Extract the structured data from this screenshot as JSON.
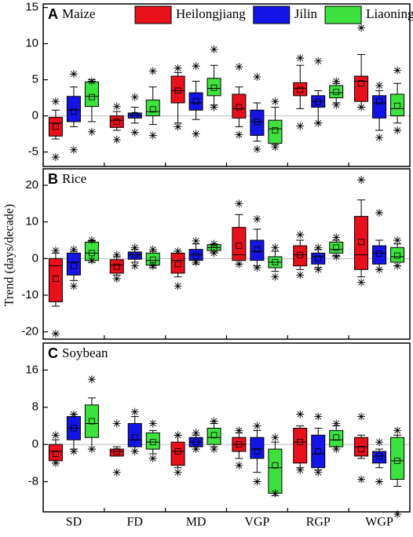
{
  "chart_data": [
    {
      "type": "box",
      "panel_label": "A",
      "title": "Maize",
      "ylim": [
        -7,
        15.5
      ],
      "yticks": [
        -5,
        0,
        5,
        10,
        15
      ],
      "series": [
        {
          "name": "Heilongjiang",
          "color": "#e8101a",
          "boxes": [
            {
              "whislo": -3.2,
              "q1": -2.8,
              "med": -1.0,
              "q3": -0.2,
              "whishi": 0.8,
              "mean": -1.5,
              "fliers": [
                -5.7,
                2.0
              ]
            },
            {
              "whislo": -2.0,
              "q1": -1.6,
              "med": -0.6,
              "q3": 0.0,
              "whishi": 0.6,
              "mean": -0.8,
              "fliers": [
                -3.3,
                1.3
              ]
            },
            {
              "whislo": -1.0,
              "q1": 1.8,
              "med": 3.5,
              "q3": 5.5,
              "whishi": 6.0,
              "mean": 3.5,
              "fliers": [
                -1.5,
                6.6
              ]
            },
            {
              "whislo": -1.5,
              "q1": -0.3,
              "med": 1.0,
              "q3": 3.0,
              "whishi": 4.0,
              "mean": 1.2,
              "fliers": [
                -2.6,
                6.8
              ]
            },
            {
              "whislo": 1.0,
              "q1": 2.8,
              "med": 3.8,
              "q3": 4.6,
              "whishi": 7.0,
              "mean": 3.6,
              "fliers": [
                -1.4,
                8.0
              ]
            },
            {
              "whislo": 1.2,
              "q1": 2.0,
              "med": 4.8,
              "q3": 5.5,
              "whishi": 8.5,
              "mean": 4.5,
              "fliers": [
                1.2,
                12.2
              ]
            }
          ]
        },
        {
          "name": "Jilin",
          "color": "#1414e6",
          "boxes": [
            {
              "whislo": -1.5,
              "q1": -0.8,
              "med": 0.8,
              "q3": 2.7,
              "whishi": 4.0,
              "mean": 0.6,
              "fliers": [
                -4.7,
                5.8
              ]
            },
            {
              "whislo": -1.0,
              "q1": -0.3,
              "med": 0.1,
              "q3": 0.4,
              "whishi": 1.2,
              "mean": 0.1,
              "fliers": [
                -2.3,
                2.6
              ]
            },
            {
              "whislo": -0.5,
              "q1": 0.8,
              "med": 1.8,
              "q3": 3.2,
              "whishi": 4.8,
              "mean": 2.0,
              "fliers": [
                -2.5,
                6.9
              ]
            },
            {
              "whislo": -3.5,
              "q1": -2.7,
              "med": -0.8,
              "q3": 0.8,
              "whishi": 1.8,
              "mean": -0.8,
              "fliers": [
                -4.6,
                5.4
              ]
            },
            {
              "whislo": -1.0,
              "q1": 1.2,
              "med": 2.0,
              "q3": 2.8,
              "whishi": 3.5,
              "mean": 1.9,
              "fliers": [
                -1.0,
                7.6
              ]
            },
            {
              "whislo": -2.0,
              "q1": -0.3,
              "med": 1.8,
              "q3": 2.8,
              "whishi": 3.5,
              "mean": 2.0,
              "fliers": [
                -3.0,
                4.2
              ]
            }
          ]
        },
        {
          "name": "Liaoning",
          "color": "#3ee23e",
          "boxes": [
            {
              "whislo": -0.8,
              "q1": 1.3,
              "med": 2.7,
              "q3": 4.7,
              "whishi": 5.0,
              "mean": 2.6,
              "fliers": [
                -2.2,
                4.8
              ]
            },
            {
              "whislo": -1.2,
              "q1": 0.0,
              "med": 0.6,
              "q3": 2.2,
              "whishi": 4.0,
              "mean": 0.9,
              "fliers": [
                -2.7,
                6.2
              ]
            },
            {
              "whislo": 1.5,
              "q1": 2.8,
              "med": 3.8,
              "q3": 5.2,
              "whishi": 7.0,
              "mean": 3.9,
              "fliers": [
                1.2,
                9.2
              ]
            },
            {
              "whislo": -4.0,
              "q1": -3.8,
              "med": -1.8,
              "q3": -0.6,
              "whishi": 1.2,
              "mean": -2.0,
              "fliers": [
                -4.3,
                2.0
              ]
            },
            {
              "whislo": 1.8,
              "q1": 2.5,
              "med": 3.2,
              "q3": 4.2,
              "whishi": 4.5,
              "mean": 3.3,
              "fliers": [
                1.5,
                4.8
              ]
            },
            {
              "whislo": -1.0,
              "q1": 0.0,
              "med": 1.0,
              "q3": 3.0,
              "whishi": 4.5,
              "mean": 1.4,
              "fliers": [
                -2.0,
                6.3
              ]
            }
          ]
        }
      ]
    },
    {
      "type": "box",
      "panel_label": "B",
      "title": "Rice",
      "ylabel": "Trend (days/decade)",
      "ylim": [
        -22,
        24.5
      ],
      "yticks": [
        -20,
        -10,
        0,
        10,
        20
      ],
      "series": [
        {
          "color": "#e8101a",
          "boxes": [
            {
              "whislo": -13,
              "q1": -11.8,
              "med": -2,
              "q3": 0,
              "whishi": 1.5,
              "mean": -5.5,
              "fliers": [
                -20.5,
                2.2
              ]
            },
            {
              "whislo": -4.5,
              "q1": -4,
              "med": -1.8,
              "q3": -0.3,
              "whishi": 0.5,
              "mean": -2.2,
              "fliers": [
                -5.5,
                1.0
              ]
            },
            {
              "whislo": -5,
              "q1": -4,
              "med": -0.5,
              "q3": 1.5,
              "whishi": 2,
              "mean": -1.5,
              "fliers": [
                -7.5,
                2.0
              ]
            },
            {
              "whislo": -1.5,
              "q1": -0.5,
              "med": 1,
              "q3": 8.5,
              "whishi": 12,
              "mean": 3.5,
              "fliers": [
                -1.5,
                15
              ]
            },
            {
              "whislo": -3,
              "q1": -2,
              "med": 1,
              "q3": 3.5,
              "whishi": 5,
              "mean": 1,
              "fliers": [
                -4.5,
                6.5
              ]
            },
            {
              "whislo": -5,
              "q1": -3,
              "med": 1,
              "q3": 11.5,
              "whishi": 16,
              "mean": 4.5,
              "fliers": [
                -6.5,
                21.5
              ]
            }
          ]
        },
        {
          "color": "#1414e6",
          "boxes": [
            {
              "whislo": -6,
              "q1": -4.5,
              "med": -1,
              "q3": 1.5,
              "whishi": 2,
              "mean": -2,
              "fliers": [
                -7.5,
                2.5
              ]
            },
            {
              "whislo": -1,
              "q1": -0.2,
              "med": 1,
              "q3": 1.8,
              "whishi": 2.5,
              "mean": 1,
              "fliers": [
                -2.0,
                3.0
              ]
            },
            {
              "whislo": -1.5,
              "q1": -0.5,
              "med": 1,
              "q3": 2.5,
              "whishi": 4,
              "mean": 0.7,
              "fliers": [
                -1.0,
                4.8
              ]
            },
            {
              "whislo": -2,
              "q1": -0.5,
              "med": 2,
              "q3": 5,
              "whishi": 8,
              "mean": 2.5,
              "fliers": [
                -2.5,
                10.8
              ]
            },
            {
              "whislo": -2.5,
              "q1": -1.5,
              "med": 0.5,
              "q3": 1.5,
              "whishi": 2.5,
              "mean": 0,
              "fliers": [
                -3.0,
                3.0
              ]
            },
            {
              "whislo": -3,
              "q1": -1.5,
              "med": 1.5,
              "q3": 3.5,
              "whishi": 5,
              "mean": 1.3,
              "fliers": [
                -3.0,
                12.5
              ]
            }
          ]
        },
        {
          "color": "#3ee23e",
          "boxes": [
            {
              "whislo": -1,
              "q1": -0.5,
              "med": 1.5,
              "q3": 4.5,
              "whishi": 4.8,
              "mean": 1.5,
              "fliers": [
                -0.5,
                5
              ]
            },
            {
              "whislo": -2.5,
              "q1": -1.8,
              "med": -0.5,
              "q3": 1.5,
              "whishi": 2,
              "mean": -0.3,
              "fliers": [
                -2.0,
                2.5
              ]
            },
            {
              "whislo": 1.8,
              "q1": 2.2,
              "med": 3,
              "q3": 3.8,
              "whishi": 4,
              "mean": 3,
              "fliers": [
                1.5,
                4.0
              ]
            },
            {
              "whislo": -3.5,
              "q1": -2.5,
              "med": -1,
              "q3": 0.5,
              "whishi": 2,
              "mean": -1,
              "fliers": [
                -5.0,
                3.0
              ]
            },
            {
              "whislo": 0.8,
              "q1": 1.5,
              "med": 2.5,
              "q3": 4.5,
              "whishi": 5,
              "mean": 3,
              "fliers": [
                0.5,
                5.8
              ]
            },
            {
              "whislo": -2,
              "q1": -1,
              "med": 0.5,
              "q3": 3,
              "whishi": 4,
              "mean": 0.8,
              "fliers": [
                -2.0,
                5.0
              ]
            }
          ]
        }
      ]
    },
    {
      "type": "box",
      "panel_label": "C",
      "title": "Soybean",
      "ylim": [
        -14.5,
        21.8
      ],
      "yticks": [
        -8,
        0,
        8,
        16
      ],
      "categories": [
        "SD",
        "FD",
        "MD",
        "VGP",
        "RGP",
        "WGP"
      ],
      "series": [
        {
          "color": "#e8101a",
          "boxes": [
            {
              "whislo": -4,
              "q1": -3.5,
              "med": -1.5,
              "q3": 0,
              "whishi": 1,
              "mean": -2,
              "fliers": [
                -4.0,
                2.0
              ]
            },
            {
              "whislo": -2.5,
              "q1": -2.5,
              "med": -1.5,
              "q3": -1,
              "whishi": -0.5,
              "mean": -1.5,
              "fliers": [
                -6.0,
                4.5
              ]
            },
            {
              "whislo": -5,
              "q1": -4.5,
              "med": -1.5,
              "q3": 0.5,
              "whishi": 2,
              "mean": -1.5,
              "fliers": [
                -6.0,
                2.0
              ]
            },
            {
              "whislo": -3,
              "q1": -1.5,
              "med": 0,
              "q3": 1.5,
              "whishi": 2.5,
              "mean": 0,
              "fliers": [
                -4.5,
                3.0
              ]
            },
            {
              "whislo": -5,
              "q1": -4,
              "med": 0.5,
              "q3": 3.5,
              "whishi": 4,
              "mean": 0.5,
              "fliers": [
                -5.5,
                6.5
              ]
            },
            {
              "whislo": -3,
              "q1": -2.5,
              "med": -0.5,
              "q3": 1.5,
              "whishi": 2,
              "mean": -1,
              "fliers": [
                -7.5,
                6.0
              ]
            }
          ]
        },
        {
          "color": "#1414e6",
          "boxes": [
            {
              "whislo": -1,
              "q1": 1,
              "med": 3.5,
              "q3": 6,
              "whishi": 6.5,
              "mean": 3.5,
              "fliers": [
                -1.5,
                6.5
              ]
            },
            {
              "whislo": -1.5,
              "q1": -0.5,
              "med": 1,
              "q3": 4.5,
              "whishi": 6,
              "mean": 1.5,
              "fliers": [
                -1.5,
                7.0
              ]
            },
            {
              "whislo": -1,
              "q1": -0.5,
              "med": 0.5,
              "q3": 1.5,
              "whishi": 2,
              "mean": 0.5,
              "fliers": [
                -1.0,
                2.5
              ]
            },
            {
              "whislo": -6,
              "q1": -3,
              "med": -1,
              "q3": 1.5,
              "whishi": 3,
              "mean": -1.5,
              "fliers": [
                -8.0,
                4.0
              ]
            },
            {
              "whislo": -5.5,
              "q1": -5,
              "med": -2,
              "q3": 2,
              "whishi": 3.5,
              "mean": -1.5,
              "fliers": [
                -6.0,
                6.0
              ]
            },
            {
              "whislo": -5,
              "q1": -4,
              "med": -2.5,
              "q3": -1.5,
              "whishi": -1,
              "mean": -2.5,
              "fliers": [
                -8.0,
                0.5
              ]
            }
          ]
        },
        {
          "color": "#3ee23e",
          "boxes": [
            {
              "whislo": -1,
              "q1": 1.5,
              "med": 4.5,
              "q3": 8.5,
              "whishi": 10,
              "mean": 5,
              "fliers": [
                -1.0,
                14.0
              ]
            },
            {
              "whislo": -2,
              "q1": -1,
              "med": 0.5,
              "q3": 2.5,
              "whishi": 3,
              "mean": 0.5,
              "fliers": [
                -3.0,
                4.5
              ]
            },
            {
              "whislo": -0.5,
              "q1": 0,
              "med": 1.5,
              "q3": 3.5,
              "whishi": 4.5,
              "mean": 2,
              "fliers": [
                -1.0,
                5.0
              ]
            },
            {
              "whislo": -11,
              "q1": -10.5,
              "med": -5,
              "q3": -1,
              "whishi": 0.5,
              "mean": -4.5,
              "fliers": [
                -10.5,
                1.5
              ]
            },
            {
              "whislo": -1,
              "q1": -0.5,
              "med": 1,
              "q3": 3,
              "whishi": 4,
              "mean": 1.5,
              "fliers": [
                -1.0,
                4.5
              ]
            },
            {
              "whislo": -9,
              "q1": -7.5,
              "med": -3.5,
              "q3": 1.5,
              "whishi": 2,
              "mean": -3.5,
              "fliers": [
                -15.0,
                3.0
              ]
            }
          ]
        }
      ]
    }
  ]
}
